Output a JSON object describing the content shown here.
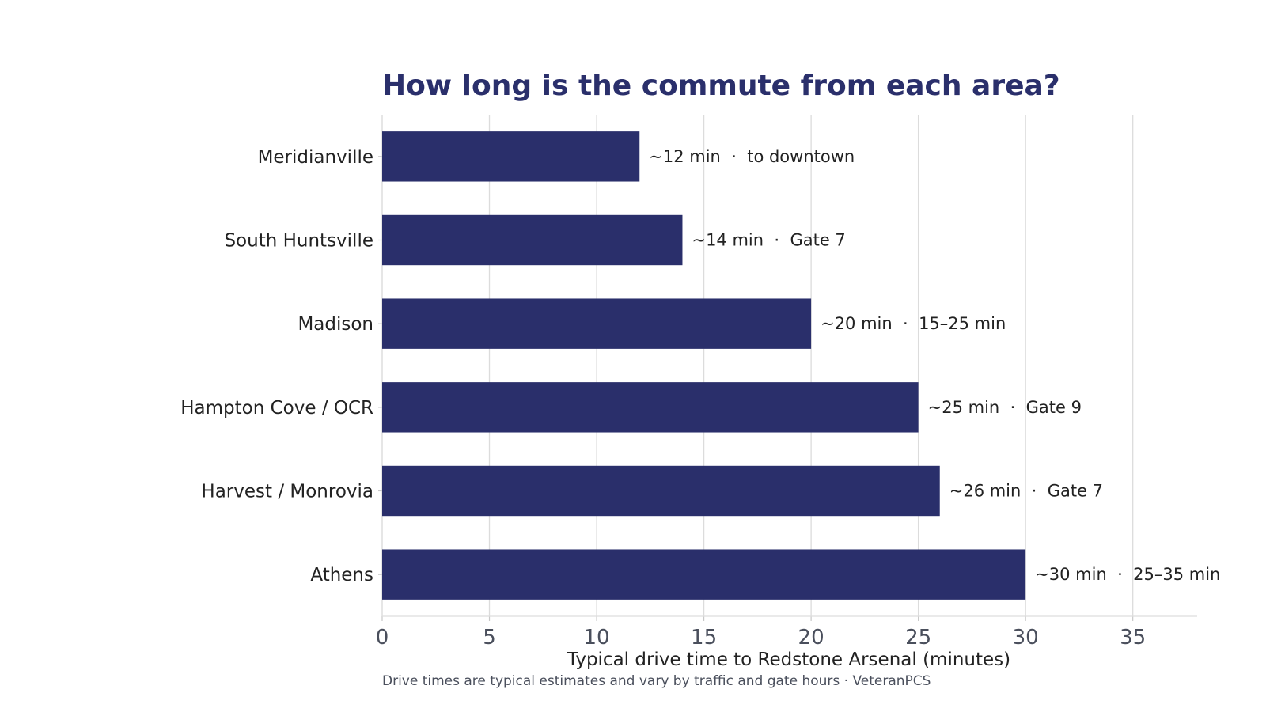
{
  "chart_data": {
    "type": "bar",
    "orientation": "horizontal",
    "title": "How long is the commute from each area?",
    "xlabel": "Typical drive time to Redstone Arsenal (minutes)",
    "ylabel": "",
    "xlim": [
      0,
      38
    ],
    "xticks": [
      0,
      5,
      10,
      15,
      20,
      25,
      30,
      35
    ],
    "grid": "vertical",
    "bar_color": "#2a2f6b",
    "categories": [
      "Meridianville",
      "South Huntsville",
      "Madison",
      "Hampton Cove / OCR",
      "Harvest / Monrovia",
      "Athens"
    ],
    "values": [
      12,
      14,
      20,
      25,
      26,
      30
    ],
    "data_labels": [
      "~12 min  ·  to downtown",
      "~14 min  ·  Gate 7",
      "~20 min  ·  15–25 min",
      "~25 min  ·  Gate 9",
      "~26 min  ·  Gate 7",
      "~30 min  ·  25–35 min"
    ],
    "footnote": "Drive times are typical estimates and vary by traffic and gate hours · VeteranPCS"
  }
}
